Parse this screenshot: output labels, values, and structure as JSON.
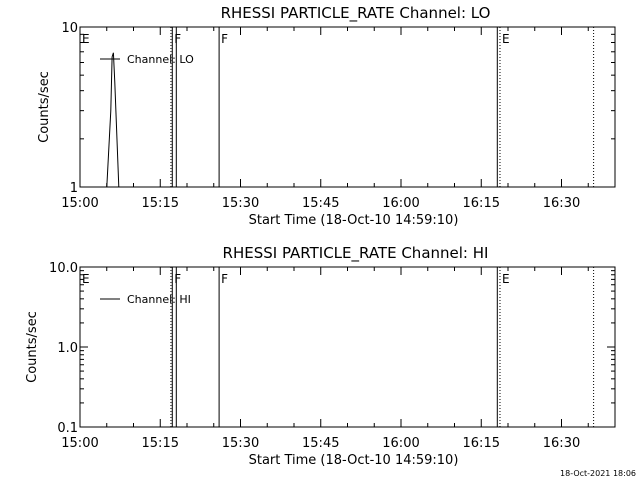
{
  "footer": {
    "timestamp": "18-Oct-2021 18:06"
  },
  "chart_data": [
    {
      "type": "line",
      "title": "RHESSI PARTICLE_RATE Channel: LO",
      "xlabel": "Start Time (18-Oct-10 14:59:10)",
      "ylabel": "Counts/sec",
      "y_scale": "log",
      "xlim": [
        "15:00",
        "16:40"
      ],
      "ylim": [
        1,
        10
      ],
      "x_ticks": [
        "15:00",
        "15:15",
        "15:30",
        "15:45",
        "16:00",
        "16:15",
        "16:30"
      ],
      "y_ticks": [
        {
          "value": 1,
          "label": "1"
        },
        {
          "value": 10,
          "label": "10"
        }
      ],
      "legend": {
        "position": "top-left",
        "entries": [
          "Channel: LO"
        ]
      },
      "series": [
        {
          "name": "Channel: LO",
          "x": [
            "15:05",
            "15:05:45",
            "15:06",
            "15:06:15",
            "15:06:30",
            "15:07:15"
          ],
          "y": [
            1,
            3,
            6.5,
            6.9,
            4.5,
            1
          ]
        }
      ],
      "markers": [
        {
          "time": "15:00",
          "label": "E",
          "style": "solid"
        },
        {
          "time": "15:17",
          "label": "",
          "style": "dotted"
        },
        {
          "time": "15:17:15",
          "label": "F",
          "style": "solid"
        },
        {
          "time": "15:18",
          "label": "",
          "style": "solid"
        },
        {
          "time": "15:26",
          "label": "F",
          "style": "solid"
        },
        {
          "time": "16:18",
          "label": "",
          "style": "solid"
        },
        {
          "time": "16:18:30",
          "label": "E",
          "style": "dotted"
        },
        {
          "time": "16:36",
          "label": "",
          "style": "dotted"
        }
      ]
    },
    {
      "type": "line",
      "title": "RHESSI PARTICLE_RATE Channel: HI",
      "xlabel": "Start Time (18-Oct-10 14:59:10)",
      "ylabel": "Counts/sec",
      "y_scale": "log",
      "xlim": [
        "15:00",
        "16:40"
      ],
      "ylim": [
        0.1,
        10
      ],
      "x_ticks": [
        "15:00",
        "15:15",
        "15:30",
        "15:45",
        "16:00",
        "16:15",
        "16:30"
      ],
      "y_ticks": [
        {
          "value": 0.1,
          "label": "0.1"
        },
        {
          "value": 1,
          "label": "1.0"
        },
        {
          "value": 10,
          "label": "10.0"
        }
      ],
      "legend": {
        "position": "top-left",
        "entries": [
          "Channel: HI"
        ]
      },
      "series": [
        {
          "name": "Channel: HI",
          "x": [],
          "y": []
        }
      ],
      "markers": [
        {
          "time": "15:00",
          "label": "E",
          "style": "solid"
        },
        {
          "time": "15:17",
          "label": "",
          "style": "dotted"
        },
        {
          "time": "15:17:15",
          "label": "F",
          "style": "solid"
        },
        {
          "time": "15:18",
          "label": "",
          "style": "solid"
        },
        {
          "time": "15:26",
          "label": "F",
          "style": "solid"
        },
        {
          "time": "16:18",
          "label": "",
          "style": "solid"
        },
        {
          "time": "16:18:30",
          "label": "E",
          "style": "dotted"
        },
        {
          "time": "16:36",
          "label": "",
          "style": "dotted"
        }
      ]
    }
  ]
}
